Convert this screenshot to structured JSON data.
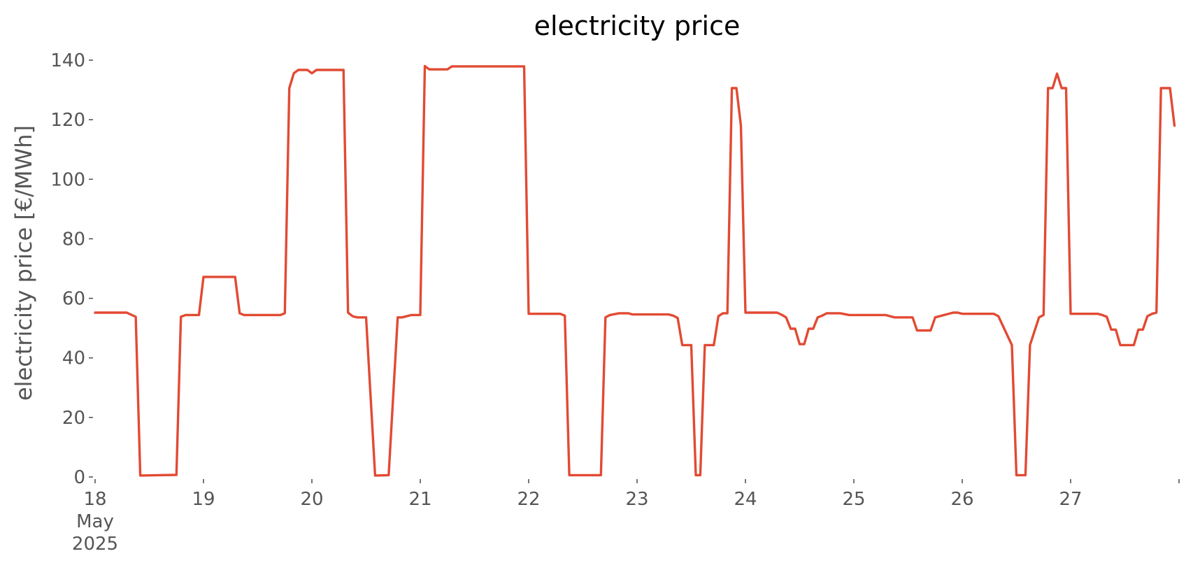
{
  "chart_data": {
    "type": "line",
    "title": "electricity price",
    "xlabel": "",
    "ylabel": "electricity price [€/MWh]",
    "grid": false,
    "legend": "none",
    "colors": {
      "line": "#E24A33",
      "text": "#555555",
      "title": "#000000"
    },
    "ylim": [
      0,
      140
    ],
    "y_ticks": [
      0,
      20,
      40,
      60,
      80,
      100,
      120,
      140
    ],
    "x_range": [
      "2025-05-18 00:00",
      "2025-05-27 23:00"
    ],
    "x_ticks": [
      {
        "x": "2025-05-18 00:00",
        "label": "18",
        "sub1": "May",
        "sub2": "2025"
      },
      {
        "x": "2025-05-19 00:00",
        "label": "19"
      },
      {
        "x": "2025-05-20 00:00",
        "label": "20"
      },
      {
        "x": "2025-05-21 00:00",
        "label": "21"
      },
      {
        "x": "2025-05-22 00:00",
        "label": "22"
      },
      {
        "x": "2025-05-23 00:00",
        "label": "23"
      },
      {
        "x": "2025-05-24 00:00",
        "label": "24"
      },
      {
        "x": "2025-05-25 00:00",
        "label": "25"
      },
      {
        "x": "2025-05-26 00:00",
        "label": "26"
      },
      {
        "x": "2025-05-27 00:00",
        "label": "27"
      },
      {
        "x": "2025-05-28 00:00",
        "label": ""
      }
    ],
    "series": [
      {
        "points": [
          [
            "2025-05-18 00:00",
            55.2
          ],
          [
            "2025-05-18 07:00",
            55.2
          ],
          [
            "2025-05-18 08:00",
            54.5
          ],
          [
            "2025-05-18 09:00",
            53.8
          ],
          [
            "2025-05-18 10:00",
            0.5
          ],
          [
            "2025-05-18 14:00",
            0.6
          ],
          [
            "2025-05-18 18:00",
            0.7
          ],
          [
            "2025-05-18 19:00",
            53.8
          ],
          [
            "2025-05-18 20:00",
            54.4
          ],
          [
            "2025-05-18 23:00",
            54.4
          ],
          [
            "2025-05-19 00:00",
            67.2
          ],
          [
            "2025-05-19 07:00",
            67.2
          ],
          [
            "2025-05-19 08:00",
            55.0
          ],
          [
            "2025-05-19 09:00",
            54.4
          ],
          [
            "2025-05-19 17:00",
            54.4
          ],
          [
            "2025-05-19 18:00",
            55.0
          ],
          [
            "2025-05-19 19:00",
            130.6
          ],
          [
            "2025-05-19 20:00",
            135.6
          ],
          [
            "2025-05-19 21:00",
            136.7
          ],
          [
            "2025-05-19 23:00",
            136.7
          ],
          [
            "2025-05-20 00:00",
            135.6
          ],
          [
            "2025-05-20 01:00",
            136.7
          ],
          [
            "2025-05-20 07:00",
            136.7
          ],
          [
            "2025-05-20 08:00",
            55.2
          ],
          [
            "2025-05-20 09:00",
            54.0
          ],
          [
            "2025-05-20 10:00",
            53.6
          ],
          [
            "2025-05-20 12:00",
            53.6
          ],
          [
            "2025-05-20 14:00",
            0.5
          ],
          [
            "2025-05-20 17:00",
            0.6
          ],
          [
            "2025-05-20 19:00",
            53.6
          ],
          [
            "2025-05-20 20:00",
            53.6
          ],
          [
            "2025-05-20 22:00",
            54.4
          ],
          [
            "2025-05-21 00:00",
            54.4
          ],
          [
            "2025-05-21 01:00",
            138.0
          ],
          [
            "2025-05-21 02:00",
            136.9
          ],
          [
            "2025-05-21 06:00",
            136.9
          ],
          [
            "2025-05-21 07:00",
            137.9
          ],
          [
            "2025-05-21 23:00",
            137.9
          ],
          [
            "2025-05-22 00:00",
            54.8
          ],
          [
            "2025-05-22 07:00",
            54.8
          ],
          [
            "2025-05-22 08:00",
            54.2
          ],
          [
            "2025-05-22 09:00",
            0.6
          ],
          [
            "2025-05-22 16:00",
            0.6
          ],
          [
            "2025-05-22 17:00",
            53.6
          ],
          [
            "2025-05-22 18:00",
            54.4
          ],
          [
            "2025-05-22 20:00",
            55.0
          ],
          [
            "2025-05-22 22:00",
            55.0
          ],
          [
            "2025-05-22 23:00",
            54.6
          ],
          [
            "2025-05-23 07:00",
            54.6
          ],
          [
            "2025-05-23 08:00",
            54.2
          ],
          [
            "2025-05-23 09:00",
            53.4
          ],
          [
            "2025-05-23 10:00",
            44.3
          ],
          [
            "2025-05-23 12:00",
            44.3
          ],
          [
            "2025-05-23 13:00",
            0.6
          ],
          [
            "2025-05-23 14:00",
            0.6
          ],
          [
            "2025-05-23 15:00",
            44.3
          ],
          [
            "2025-05-23 17:00",
            44.3
          ],
          [
            "2025-05-23 18:00",
            54.0
          ],
          [
            "2025-05-23 19:00",
            55.0
          ],
          [
            "2025-05-23 20:00",
            55.0
          ],
          [
            "2025-05-23 21:00",
            130.6
          ],
          [
            "2025-05-23 22:00",
            130.6
          ],
          [
            "2025-05-23 23:00",
            118.0
          ],
          [
            "2025-05-24 00:00",
            55.2
          ],
          [
            "2025-05-24 07:00",
            55.2
          ],
          [
            "2025-05-24 08:00",
            54.5
          ],
          [
            "2025-05-24 09:00",
            53.6
          ],
          [
            "2025-05-24 10:00",
            49.8
          ],
          [
            "2025-05-24 11:00",
            49.8
          ],
          [
            "2025-05-24 12:00",
            44.6
          ],
          [
            "2025-05-24 13:00",
            44.6
          ],
          [
            "2025-05-24 14:00",
            49.8
          ],
          [
            "2025-05-24 15:00",
            49.8
          ],
          [
            "2025-05-24 16:00",
            53.6
          ],
          [
            "2025-05-24 17:00",
            54.2
          ],
          [
            "2025-05-24 18:00",
            55.0
          ],
          [
            "2025-05-24 21:00",
            55.0
          ],
          [
            "2025-05-24 23:00",
            54.4
          ],
          [
            "2025-05-25 07:00",
            54.4
          ],
          [
            "2025-05-25 09:00",
            53.6
          ],
          [
            "2025-05-25 13:00",
            53.6
          ],
          [
            "2025-05-25 14:00",
            49.2
          ],
          [
            "2025-05-25 17:00",
            49.2
          ],
          [
            "2025-05-25 18:00",
            53.6
          ],
          [
            "2025-05-25 20:00",
            54.4
          ],
          [
            "2025-05-25 22:00",
            55.2
          ],
          [
            "2025-05-25 23:00",
            55.2
          ],
          [
            "2025-05-26 00:00",
            54.8
          ],
          [
            "2025-05-26 07:00",
            54.8
          ],
          [
            "2025-05-26 08:00",
            54.0
          ],
          [
            "2025-05-26 11:00",
            44.3
          ],
          [
            "2025-05-26 12:00",
            0.6
          ],
          [
            "2025-05-26 14:00",
            0.6
          ],
          [
            "2025-05-26 15:00",
            44.3
          ],
          [
            "2025-05-26 17:00",
            53.6
          ],
          [
            "2025-05-26 18:00",
            54.4
          ],
          [
            "2025-05-26 19:00",
            130.6
          ],
          [
            "2025-05-26 20:00",
            130.6
          ],
          [
            "2025-05-26 21:00",
            135.5
          ],
          [
            "2025-05-26 22:00",
            130.6
          ],
          [
            "2025-05-26 23:00",
            130.6
          ],
          [
            "2025-05-27 00:00",
            54.8
          ],
          [
            "2025-05-27 06:00",
            54.8
          ],
          [
            "2025-05-27 07:00",
            54.4
          ],
          [
            "2025-05-27 08:00",
            53.8
          ],
          [
            "2025-05-27 09:00",
            49.5
          ],
          [
            "2025-05-27 10:00",
            49.5
          ],
          [
            "2025-05-27 11:00",
            44.3
          ],
          [
            "2025-05-27 14:00",
            44.3
          ],
          [
            "2025-05-27 15:00",
            49.5
          ],
          [
            "2025-05-27 16:00",
            49.5
          ],
          [
            "2025-05-27 17:00",
            54.0
          ],
          [
            "2025-05-27 18:00",
            54.8
          ],
          [
            "2025-05-27 19:00",
            55.2
          ],
          [
            "2025-05-27 20:00",
            130.6
          ],
          [
            "2025-05-27 22:00",
            130.6
          ],
          [
            "2025-05-27 23:00",
            118.0
          ]
        ]
      }
    ]
  }
}
